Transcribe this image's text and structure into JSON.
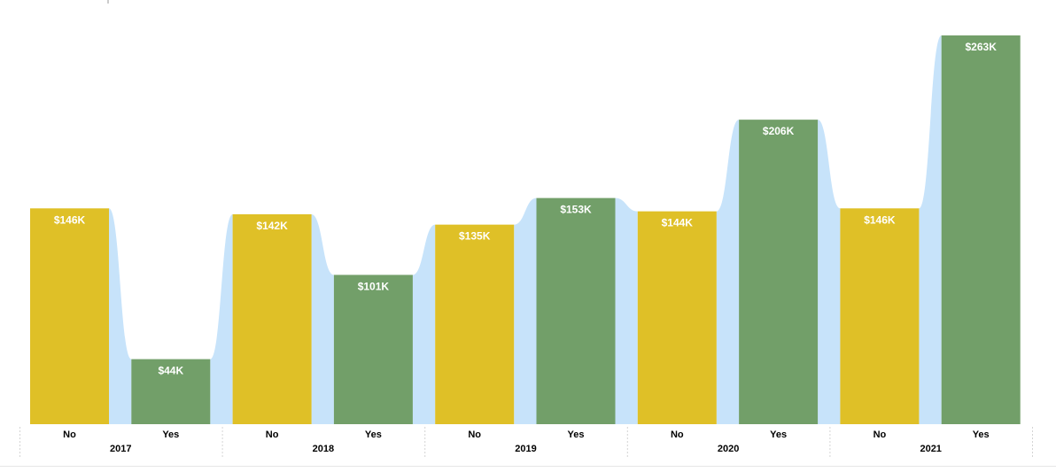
{
  "chart_data": {
    "type": "bar",
    "groups": [
      {
        "year": "2017",
        "bars": [
          {
            "category": "No",
            "value": 146,
            "label": "$146K"
          },
          {
            "category": "Yes",
            "value": 44,
            "label": "$44K"
          }
        ]
      },
      {
        "year": "2018",
        "bars": [
          {
            "category": "No",
            "value": 142,
            "label": "$142K"
          },
          {
            "category": "Yes",
            "value": 101,
            "label": "$101K"
          }
        ]
      },
      {
        "year": "2019",
        "bars": [
          {
            "category": "No",
            "value": 135,
            "label": "$135K"
          },
          {
            "category": "Yes",
            "value": 153,
            "label": "$153K"
          }
        ]
      },
      {
        "year": "2020",
        "bars": [
          {
            "category": "No",
            "value": 144,
            "label": "$144K"
          },
          {
            "category": "Yes",
            "value": 206,
            "label": "$206K"
          }
        ]
      },
      {
        "year": "2021",
        "bars": [
          {
            "category": "No",
            "value": 146,
            "label": "$146K"
          },
          {
            "category": "Yes",
            "value": 263,
            "label": "$263K"
          }
        ]
      }
    ],
    "unit": "$K",
    "ylim": [
      0,
      263
    ],
    "grid": false,
    "legend": "none",
    "ribbon": true,
    "colors": {
      "No": "#dfc027",
      "Yes": "#729f69",
      "ribbon": "#c7e3fa",
      "label_text": "#ffffff",
      "axis_text": "#000000",
      "divider": "#d4d4d4"
    }
  }
}
